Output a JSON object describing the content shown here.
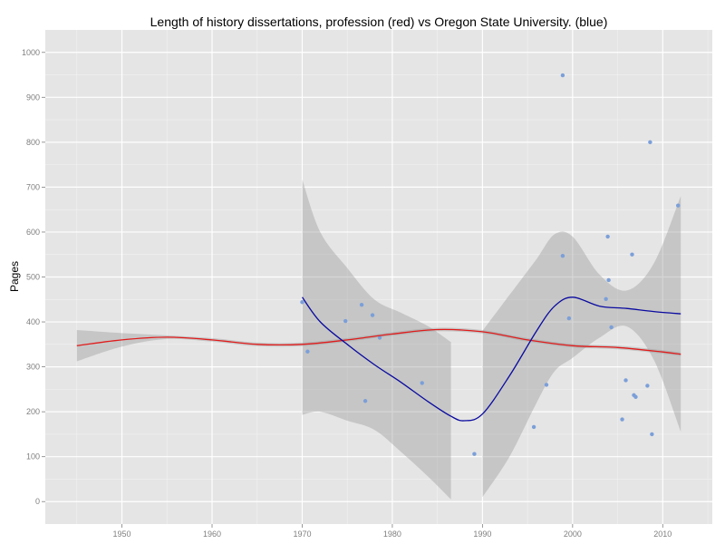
{
  "chart_data": {
    "type": "scatter",
    "title": "Length of history dissertations, profession (red) vs Oregon State University. (blue)",
    "xlabel": "",
    "ylabel": "Pages",
    "xlim": [
      1941.5,
      2015.5
    ],
    "ylim": [
      -50,
      1050
    ],
    "x_ticks": [
      1950,
      1960,
      1970,
      1980,
      1990,
      2000,
      2010
    ],
    "y_ticks": [
      0,
      100,
      200,
      300,
      400,
      500,
      600,
      700,
      800,
      900,
      1000
    ],
    "grid": true,
    "legend": "none",
    "colors": {
      "panel": "#e5e5e5",
      "grid": "#ffffff",
      "points": "#7b9fd9",
      "profession_line": "#e01b1b",
      "osu_line": "#0a0aa0",
      "band": "#999999"
    },
    "series": [
      {
        "role": "points",
        "x": [
          1970,
          1970.6,
          1974.8,
          1976.6,
          1977,
          1977.8,
          1978.6,
          1983.3,
          1989.1,
          1995.7,
          1997.1,
          1998.9,
          1998.9,
          1999.6,
          2003.7,
          2003.9,
          2004,
          2004.3,
          2005.5,
          2005.9,
          2006.6,
          2006.8,
          2007,
          2008.3,
          2008.6,
          2008.8,
          2011.7
        ],
        "y": [
          444,
          334,
          402,
          438,
          224,
          415,
          365,
          264,
          106,
          166,
          260,
          949,
          547,
          408,
          451,
          590,
          493,
          388,
          183,
          270,
          550,
          237,
          233,
          258,
          800,
          150,
          659
        ]
      },
      {
        "role": "profession",
        "x": [
          1945,
          1950,
          1955,
          1960,
          1965,
          1970,
          1975,
          1980,
          1985,
          1990,
          1995,
          2000,
          2005,
          2010,
          2012
        ],
        "y": [
          347,
          360,
          366,
          360,
          350,
          350,
          360,
          373,
          383,
          378,
          360,
          347,
          343,
          333,
          328
        ],
        "upper": [
          382,
          375,
          370,
          364,
          354,
          354,
          364,
          377,
          387,
          382,
          364,
          351,
          347,
          337,
          332
        ],
        "lower": [
          312,
          345,
          362,
          356,
          346,
          346,
          356,
          369,
          379,
          374,
          356,
          343,
          339,
          329,
          324
        ]
      },
      {
        "role": "osu",
        "x": [
          1970,
          1972,
          1975,
          1978,
          1981,
          1984,
          1986.5,
          1988,
          1990,
          1993,
          1996,
          1998,
          2000,
          2003,
          2006,
          2009,
          2012
        ],
        "y": [
          455,
          400,
          350,
          305,
          265,
          222,
          190,
          180,
          195,
          280,
          380,
          435,
          455,
          435,
          430,
          423,
          418
        ],
        "upper": [
          717,
          600,
          520,
          450,
          420,
          390,
          355,
          null,
          380,
          460,
          540,
          595,
          590,
          505,
          470,
          530,
          680
        ],
        "lower": [
          193,
          200,
          180,
          160,
          110,
          55,
          5,
          null,
          10,
          100,
          220,
          290,
          320,
          365,
          390,
          316,
          156
        ]
      }
    ]
  }
}
